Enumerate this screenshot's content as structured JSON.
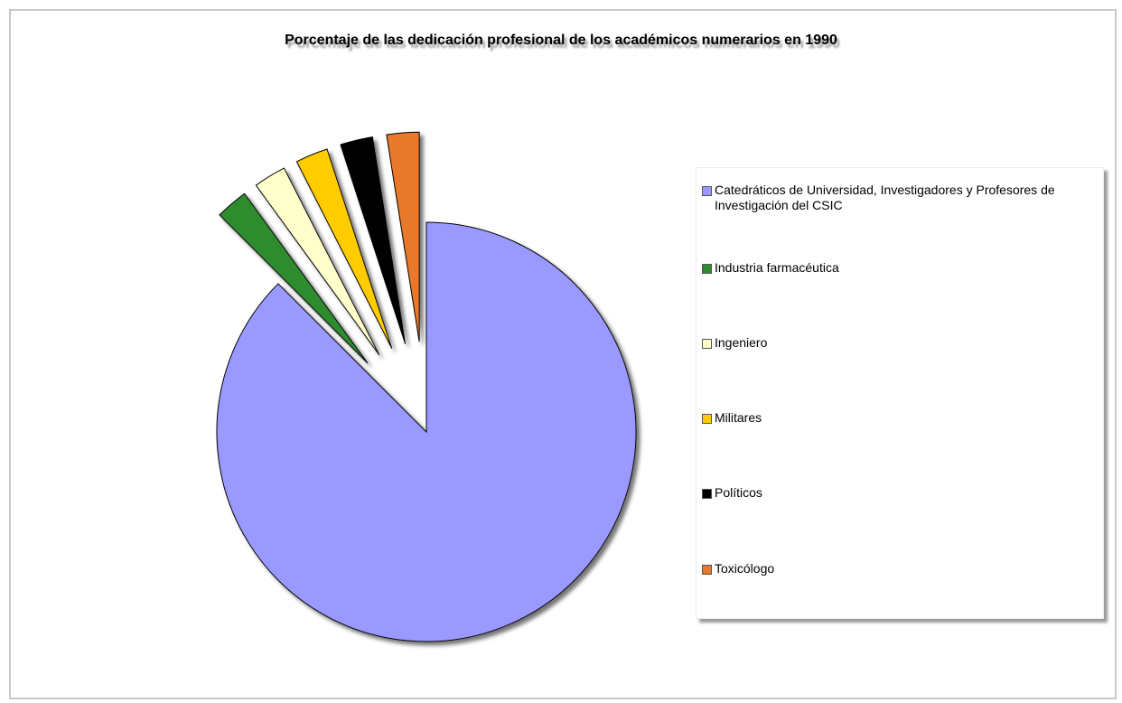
{
  "chart_data": {
    "type": "pie",
    "title": "Porcentaje de las dedicación profesional de los académicos numerarios en 1990",
    "categories": [
      "Catedráticos de Universidad, Investigadores y Profesores de Investigación del CSIC",
      "Industria farmacéutica",
      "Ingeniero",
      "Militares",
      "Políticos",
      "Toxicólogo"
    ],
    "values": [
      87.5,
      2.5,
      2.5,
      2.5,
      2.5,
      2.5
    ],
    "colors": [
      "#9999ff",
      "#2e8b2e",
      "#ffffcc",
      "#ffcc00",
      "#000000",
      "#e8792a"
    ],
    "legend": "right"
  }
}
